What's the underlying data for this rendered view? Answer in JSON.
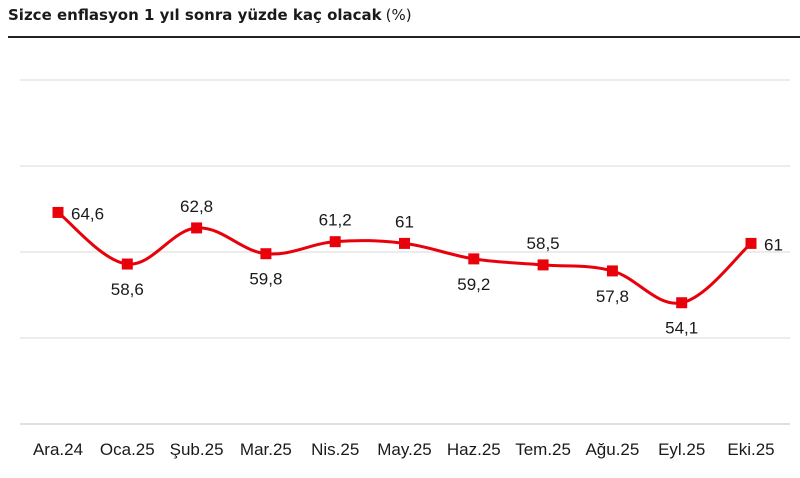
{
  "header": {
    "title": "Sizce enflasyon 1 yıl sonra yüzde kaç olacak",
    "unit": "(%)"
  },
  "colors": {
    "series": "#e8000b",
    "grid": "#d9d9d9",
    "text": "#1a1a1a"
  },
  "chart_data": {
    "type": "line",
    "title": "Sizce enflasyon 1 yıl sonra yüzde kaç olacak (%)",
    "xlabel": "",
    "ylabel": "",
    "categories": [
      "Ara.24",
      "Oca.25",
      "Şub.25",
      "Mar.25",
      "Nis.25",
      "May.25",
      "Haz.25",
      "Tem.25",
      "Ağu.25",
      "Eyl.25",
      "Eki.25"
    ],
    "series": [
      {
        "values": [
          64.6,
          58.6,
          62.8,
          59.8,
          61.2,
          61,
          59.2,
          58.5,
          57.8,
          54.1,
          61
        ],
        "labels": [
          "64,6",
          "58,6",
          "62,8",
          "59,8",
          "61,2",
          "61",
          "59,2",
          "58,5",
          "57,8",
          "54,1",
          "61"
        ],
        "label_positions": [
          "right",
          "below",
          "above",
          "below",
          "above",
          "above",
          "below",
          "above",
          "below",
          "below",
          "right"
        ]
      }
    ],
    "ylim": [
      40,
      80
    ],
    "grid": true,
    "legend": "none",
    "marker": "square",
    "smooth": true
  }
}
